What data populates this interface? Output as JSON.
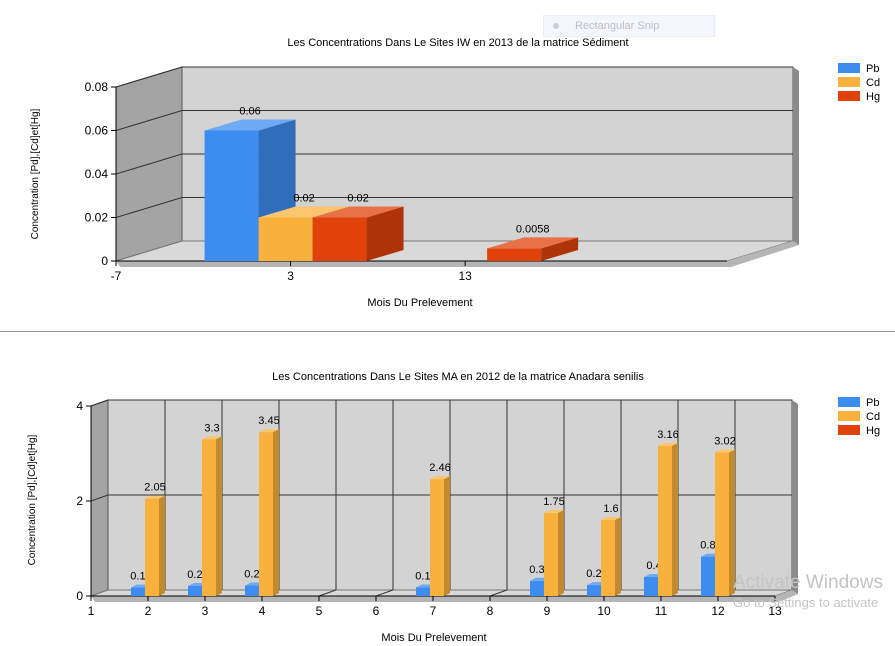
{
  "overlay": {
    "snip_label": "Rectangular Snip",
    "watermark_title": "Activate Windows",
    "watermark_sub": "Go to Settings to activate"
  },
  "colors": {
    "Pb": "#3d8cf0",
    "Cd": "#f8b13c",
    "Hg": "#e0420a",
    "wall_back": "#d3d3d3",
    "wall_left": "#a4a4a4",
    "floor": "#d9d9d9"
  },
  "chart_data": [
    {
      "type": "bar",
      "title": "Les Concentrations Dans Le Sites IW  en 2013 de la matrice  Sédiment",
      "xlabel": "Mois Du Prelevement",
      "ylabel": "Concentration [Pd],[Cd]et[Hg]",
      "ylim": [
        0,
        0.08
      ],
      "yticks": [
        "0",
        "0.02",
        "0.04",
        "0.06",
        "0.08"
      ],
      "xticks": [
        "-7",
        "3",
        "13"
      ],
      "categories": [
        3,
        13
      ],
      "legend": [
        "Pb",
        "Cd",
        "Hg"
      ],
      "legend_position": "top-right",
      "grid": true,
      "series": [
        {
          "name": "Pb",
          "values": [
            0.06,
            null
          ],
          "labels": [
            "0.06",
            ""
          ]
        },
        {
          "name": "Cd",
          "values": [
            0.02,
            null
          ],
          "labels": [
            "0.02",
            ""
          ]
        },
        {
          "name": "Hg",
          "values": [
            0.02,
            0.0058
          ],
          "labels": [
            "0.02",
            "0.0058"
          ]
        }
      ]
    },
    {
      "type": "bar",
      "title": "Les Concentrations Dans Le Sites MA  en 2012 de la matrice Anadara senilis",
      "xlabel": "Mois Du Prelevement",
      "ylabel": "Concentration [Pd],[Cd]et[Hg]",
      "ylim": [
        0,
        4
      ],
      "yticks": [
        "0",
        "2",
        "4"
      ],
      "xticks": [
        "1",
        "2",
        "3",
        "4",
        "5",
        "6",
        "7",
        "8",
        "9",
        "10",
        "11",
        "12",
        "13"
      ],
      "categories": [
        2,
        3,
        4,
        7,
        9,
        10,
        11,
        12
      ],
      "legend": [
        "Pb",
        "Cd",
        "Hg"
      ],
      "legend_position": "top-right",
      "grid": true,
      "series": [
        {
          "name": "Pb",
          "values": [
            0.18,
            0.21,
            0.22,
            0.18,
            0.32,
            0.23,
            0.4,
            0.83
          ],
          "labels": [
            "0.18",
            "0.21",
            "0.22",
            "0.18",
            "0.32",
            "0.23",
            "0.4",
            "0.83"
          ]
        },
        {
          "name": "Cd",
          "values": [
            2.05,
            3.3,
            3.45,
            2.46,
            1.75,
            1.6,
            3.16,
            3.02
          ],
          "labels": [
            "2.05",
            "3.3",
            "3.45",
            "2.46",
            "1.75",
            "1.6",
            "3.16",
            "3.02"
          ]
        },
        {
          "name": "Hg",
          "values": [
            null,
            null,
            null,
            null,
            null,
            null,
            null,
            null
          ],
          "labels": [
            "",
            "",
            "",
            "",
            "",
            "",
            "",
            ""
          ]
        }
      ]
    }
  ]
}
